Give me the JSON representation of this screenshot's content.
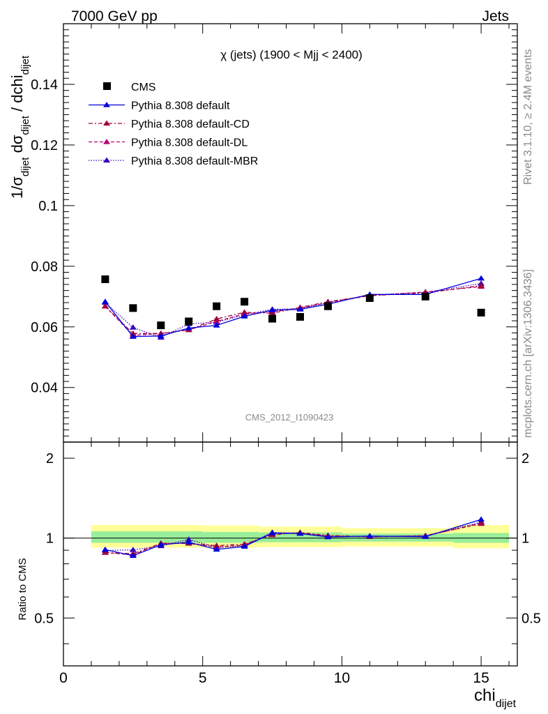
{
  "header": {
    "left": "7000 GeV pp",
    "right": "Jets"
  },
  "side_labels": {
    "rivet": "Rivet 3.1.10, ≥ 2.4M events",
    "mcplots": "mcplots.cern.ch [arXiv:1306.3436]"
  },
  "plot_title": "χ (jets) (1900 < Mjj < 2400)",
  "watermark": "CMS_2012_I1090423",
  "axis_labels": {
    "y_main_html": "1/σ<tspan baseline-shift='sub' font-size='15'>dijet</tspan> dσ<tspan baseline-shift='sub' font-size='15'>dijet</tspan> / dchi<tspan baseline-shift='sub' font-size='15'>dijet</tspan>",
    "y_ratio": "Ratio to CMS",
    "x_main": "chi",
    "x_sub": "dijet"
  },
  "legend": [
    {
      "label": "CMS",
      "color": "#000000",
      "style": "marker-square"
    },
    {
      "label": "Pythia 8.308 default",
      "color": "#0000dd",
      "style": "solid"
    },
    {
      "label": "Pythia 8.308 default-CD",
      "color": "#a0003c",
      "style": "dashdot"
    },
    {
      "label": "Pythia 8.308 default-DL",
      "color": "#b5006e",
      "style": "dashed"
    },
    {
      "label": "Pythia 8.308 default-MBR",
      "color": "#3a00c0",
      "style": "dotted"
    }
  ],
  "chart_data": {
    "type": "line",
    "xlim": [
      0,
      16.3
    ],
    "ylim_main": [
      0.022,
      0.16
    ],
    "ylim_ratio": [
      0.33,
      2.3
    ],
    "x_ticks": [
      "0",
      "5",
      "10",
      "15"
    ],
    "y_ticks_main": [
      "0.04",
      "0.06",
      "0.08",
      "0.1",
      "0.12",
      "0.14"
    ],
    "y_ticks_ratio": [
      "0.5",
      "1",
      "2"
    ],
    "x": [
      1.5,
      2.5,
      3.5,
      4.5,
      5.5,
      6.5,
      7.5,
      8.5,
      9.5,
      11.0,
      13.0,
      15.0
    ],
    "data": {
      "name": "CMS",
      "values": [
        0.0757,
        0.0662,
        0.0605,
        0.0618,
        0.0668,
        0.0683,
        0.0627,
        0.0633,
        0.0668,
        0.0695,
        0.07,
        0.0647
      ]
    },
    "series": [
      {
        "name": "Pythia 8.308 default",
        "values": [
          0.0683,
          0.0568,
          0.057,
          0.0596,
          0.0605,
          0.0635,
          0.0655,
          0.0658,
          0.0675,
          0.0707,
          0.0707,
          0.076
        ]
      },
      {
        "name": "Pythia 8.308 default-CD",
        "values": [
          0.0668,
          0.0578,
          0.0578,
          0.059,
          0.0626,
          0.0648,
          0.0645,
          0.0664,
          0.0683,
          0.0703,
          0.0712,
          0.0736
        ]
      },
      {
        "name": "Pythia 8.308 default-DL",
        "values": [
          0.0668,
          0.0572,
          0.0578,
          0.059,
          0.0618,
          0.0643,
          0.065,
          0.0662,
          0.068,
          0.0703,
          0.0715,
          0.0733
        ]
      },
      {
        "name": "Pythia 8.308 default-MBR",
        "values": [
          0.068,
          0.0598,
          0.0565,
          0.061,
          0.0615,
          0.064,
          0.0658,
          0.066,
          0.068,
          0.0705,
          0.0714,
          0.0743
        ]
      }
    ],
    "ratio_band_inner": [
      {
        "x0": 1,
        "x1": 5,
        "lo": 0.96,
        "hi": 1.06
      },
      {
        "x0": 5,
        "x1": 7,
        "lo": 0.96,
        "hi": 1.055
      },
      {
        "x0": 7,
        "x1": 10,
        "lo": 0.965,
        "hi": 1.05
      },
      {
        "x0": 10,
        "x1": 14,
        "lo": 0.97,
        "hi": 1.04
      },
      {
        "x0": 14,
        "x1": 16,
        "lo": 0.96,
        "hi": 1.045
      }
    ],
    "ratio_band_outer": [
      {
        "x0": 1,
        "x1": 5,
        "lo": 0.92,
        "hi": 1.12
      },
      {
        "x0": 5,
        "x1": 7,
        "lo": 0.92,
        "hi": 1.115
      },
      {
        "x0": 7,
        "x1": 10,
        "lo": 0.925,
        "hi": 1.105
      },
      {
        "x0": 10,
        "x1": 14,
        "lo": 0.93,
        "hi": 1.09
      },
      {
        "x0": 14,
        "x1": 16,
        "lo": 0.915,
        "hi": 1.12
      }
    ],
    "ratio_series": [
      {
        "name": "Pythia 8.308 default",
        "values": [
          0.905,
          0.858,
          0.943,
          0.965,
          0.906,
          0.93,
          1.045,
          1.04,
          1.01,
          1.018,
          1.012,
          1.175
        ]
      },
      {
        "name": "Pythia 8.308 default-CD",
        "values": [
          0.882,
          0.873,
          0.955,
          0.955,
          0.937,
          0.949,
          1.028,
          1.05,
          1.023,
          1.012,
          1.018,
          1.138
        ]
      },
      {
        "name": "Pythia 8.308 default-DL",
        "values": [
          0.882,
          0.865,
          0.955,
          0.955,
          0.925,
          0.941,
          1.037,
          1.046,
          1.018,
          1.012,
          1.021,
          1.133
        ]
      },
      {
        "name": "Pythia 8.308 default-MBR",
        "values": [
          0.898,
          0.903,
          0.934,
          0.988,
          0.921,
          0.937,
          1.05,
          1.043,
          1.018,
          1.014,
          1.02,
          1.149
        ]
      }
    ]
  }
}
